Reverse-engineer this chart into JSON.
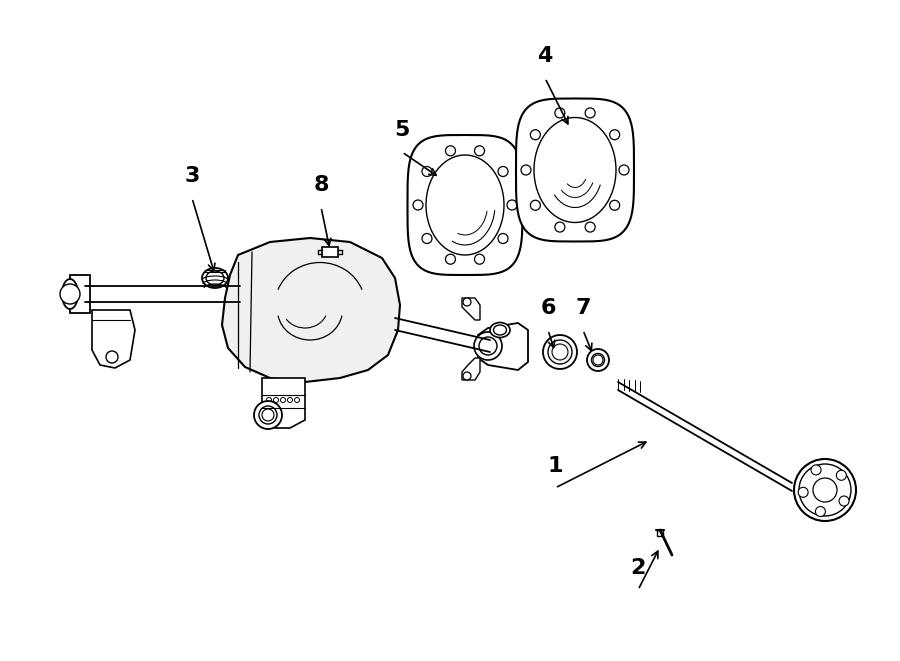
{
  "background_color": "#ffffff",
  "line_color": "#000000",
  "figsize": [
    9.0,
    6.61
  ],
  "dpi": 100,
  "label_fontsize": 16,
  "label_fontweight": "bold"
}
